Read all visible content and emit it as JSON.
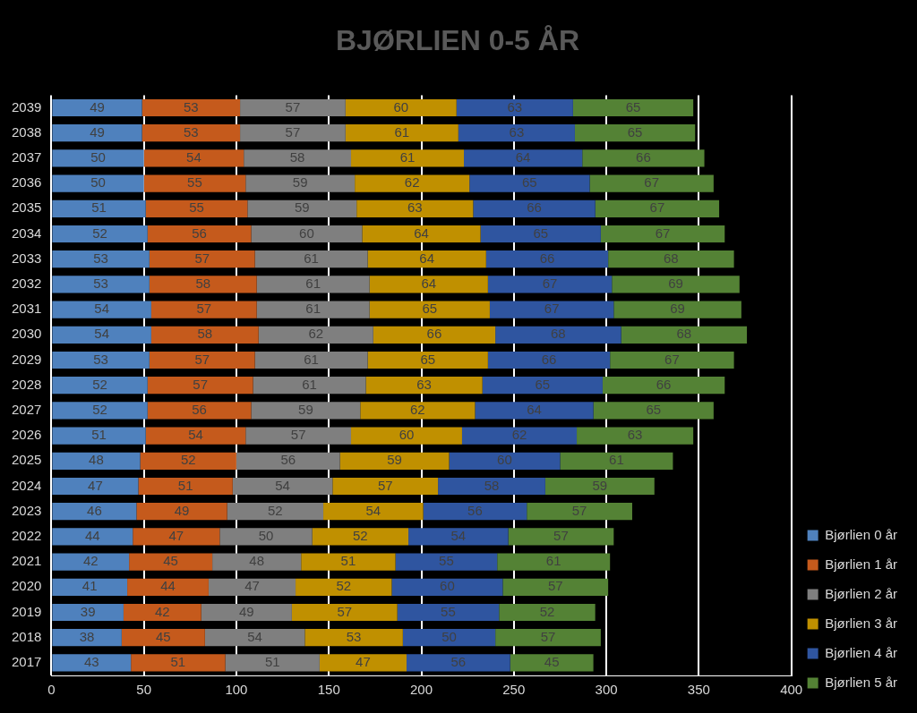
{
  "chart_data": {
    "type": "bar",
    "orientation": "horizontal",
    "stacked": true,
    "data_labels": true,
    "grid": true,
    "legend": "right",
    "title": "BJØRLIEN 0-5 ÅR",
    "categories": [
      "2039",
      "2038",
      "2037",
      "2036",
      "2035",
      "2034",
      "2033",
      "2032",
      "2031",
      "2030",
      "2029",
      "2028",
      "2027",
      "2026",
      "2025",
      "2024",
      "2023",
      "2022",
      "2021",
      "2020",
      "2019",
      "2018",
      "2017"
    ],
    "series": [
      {
        "name": "Bjørlien 0 år",
        "color": "#4f81bd",
        "values": [
          49,
          49,
          50,
          50,
          51,
          52,
          53,
          53,
          54,
          54,
          53,
          52,
          52,
          51,
          48,
          47,
          46,
          44,
          42,
          41,
          39,
          38,
          43
        ]
      },
      {
        "name": "Bjørlien 1 år",
        "color": "#c55a1c",
        "values": [
          53,
          53,
          54,
          55,
          55,
          56,
          57,
          58,
          57,
          58,
          57,
          57,
          56,
          54,
          52,
          51,
          49,
          47,
          45,
          44,
          42,
          45,
          51
        ]
      },
      {
        "name": "Bjørlien 2 år",
        "color": "#7f7f7f",
        "values": [
          57,
          57,
          58,
          59,
          59,
          60,
          61,
          61,
          61,
          62,
          61,
          61,
          59,
          57,
          56,
          54,
          52,
          50,
          48,
          47,
          49,
          54,
          51
        ]
      },
      {
        "name": "Bjørlien 3 år",
        "color": "#c09000",
        "values": [
          60,
          61,
          61,
          62,
          63,
          64,
          64,
          64,
          65,
          66,
          65,
          63,
          62,
          60,
          59,
          57,
          54,
          52,
          51,
          52,
          57,
          53,
          47
        ]
      },
      {
        "name": "Bjørlien 4 år",
        "color": "#2f55a0",
        "values": [
          63,
          63,
          64,
          65,
          66,
          65,
          66,
          67,
          67,
          68,
          66,
          65,
          64,
          62,
          60,
          58,
          56,
          54,
          55,
          60,
          55,
          50,
          56
        ]
      },
      {
        "name": "Bjørlien 5 år",
        "color": "#548235",
        "values": [
          65,
          65,
          66,
          67,
          67,
          67,
          68,
          69,
          69,
          68,
          67,
          66,
          65,
          63,
          61,
          59,
          57,
          57,
          61,
          57,
          52,
          57,
          45
        ]
      }
    ],
    "xlim": [
      0,
      400
    ],
    "xticks": [
      0,
      50,
      100,
      150,
      200,
      250,
      300,
      350,
      400
    ]
  }
}
